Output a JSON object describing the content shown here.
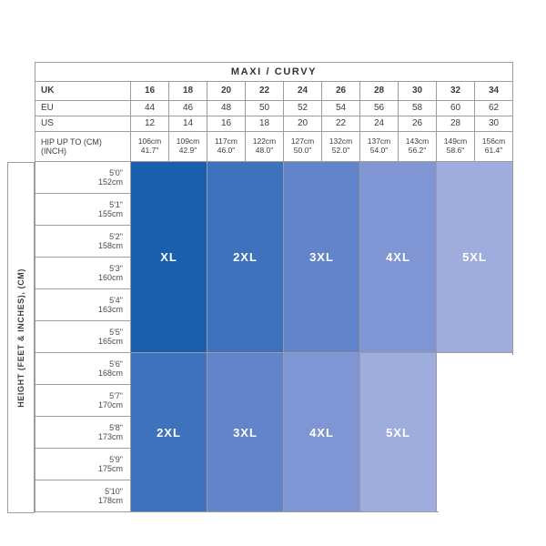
{
  "title": "MAXI / CURVY",
  "vertical_axis_label": "HEIGHT (FEET & INCHES), (CM)",
  "colors": {
    "grid_line": "#9c9c9c",
    "text": "#3c3c3c",
    "block_text": "#ffffff"
  },
  "chart_data": {
    "type": "table",
    "title": "MAXI / CURVY",
    "header_rows": {
      "uk": {
        "label": "UK",
        "values": [
          "16",
          "18",
          "20",
          "22",
          "24",
          "26",
          "28",
          "30",
          "32",
          "34"
        ]
      },
      "eu": {
        "label": "EU",
        "values": [
          "44",
          "46",
          "48",
          "50",
          "52",
          "54",
          "56",
          "58",
          "60",
          "62"
        ]
      },
      "us": {
        "label": "US",
        "values": [
          "12",
          "14",
          "16",
          "18",
          "20",
          "22",
          "24",
          "26",
          "28",
          "30"
        ]
      },
      "hip": {
        "label_line1": "HIP UP TO (CM)",
        "label_line2": "(INCH)",
        "cm": [
          "106cm",
          "109cm",
          "117cm",
          "122cm",
          "127cm",
          "132cm",
          "137cm",
          "143cm",
          "149cm",
          "156cm"
        ],
        "inch": [
          "41.7\"",
          "42.9\"",
          "46.0\"",
          "48.0\"",
          "50.0\"",
          "52.0\"",
          "54.0\"",
          "56.2\"",
          "58.6\"",
          "61.4\""
        ]
      }
    },
    "height_rows": {
      "ft": [
        "5'0\"",
        "5'1\"",
        "5'2\"",
        "5'3\"",
        "5'4\"",
        "5'5\"",
        "5'6\"",
        "5'7\"",
        "5'8\"",
        "5'9\"",
        "5'10\""
      ],
      "cm": [
        "152cm",
        "155cm",
        "158cm",
        "160cm",
        "163cm",
        "165cm",
        "168cm",
        "170cm",
        "173cm",
        "175cm",
        "178cm"
      ]
    },
    "size_blocks": {
      "top": {
        "height_range": "5'0\"-5'5\"",
        "blocks": [
          {
            "label": "XL",
            "color": "#1a5fae",
            "uk_sizes": "16-18"
          },
          {
            "label": "2XL",
            "color": "#3f72bd",
            "uk_sizes": "20-22"
          },
          {
            "label": "3XL",
            "color": "#6284ca",
            "uk_sizes": "24-26"
          },
          {
            "label": "4XL",
            "color": "#8096d4",
            "uk_sizes": "28-30"
          },
          {
            "label": "5XL",
            "color": "#9facde",
            "uk_sizes": "32-34"
          }
        ]
      },
      "bottom": {
        "height_range": "5'6\"-5'10\"",
        "blocks": [
          {
            "label": "2XL",
            "color": "#3f72bd",
            "uk_sizes": "16-18"
          },
          {
            "label": "3XL",
            "color": "#6284ca",
            "uk_sizes": "20-22"
          },
          {
            "label": "4XL",
            "color": "#8096d4",
            "uk_sizes": "24-26"
          },
          {
            "label": "5XL",
            "color": "#9facde",
            "uk_sizes": "28-30"
          }
        ]
      }
    }
  }
}
